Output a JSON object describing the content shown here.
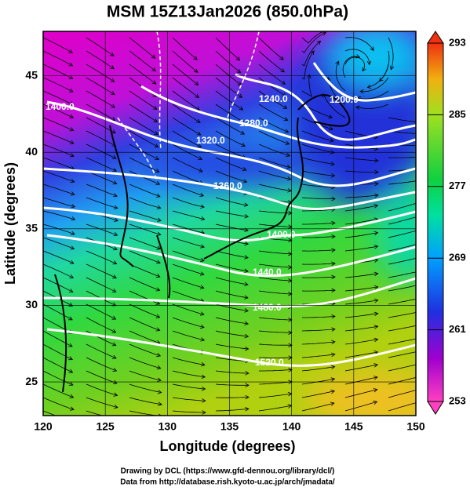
{
  "map": {
    "title": "MSM 15Z13Jan2026 (850.0hPa)",
    "x_axis": {
      "label": "Longitude (degrees)",
      "lim": [
        120,
        150
      ],
      "ticks": [
        120,
        125,
        130,
        135,
        140,
        145,
        150
      ]
    },
    "y_axis": {
      "label": "Latitude  (degrees)",
      "lim": [
        22.8,
        47.9
      ],
      "ticks": [
        25,
        30,
        35,
        40,
        45
      ]
    },
    "colorbar": {
      "lim": [
        253,
        293
      ],
      "ticks": [
        253,
        261,
        269,
        277,
        285,
        293
      ]
    },
    "contour_labels": [
      "1200.0",
      "1240.0",
      "1280.0",
      "1320.0",
      "1360.0",
      "1400.0",
      "1400.0",
      "1440.0",
      "1480.0",
      "1520.0"
    ],
    "credits": [
      "Drawing by DCL (https://www.gfd-dennou.org/library/dcl/)",
      "Data from http://database.rish.kyoto-u.ac.jp/arch/jmadata/"
    ]
  }
}
